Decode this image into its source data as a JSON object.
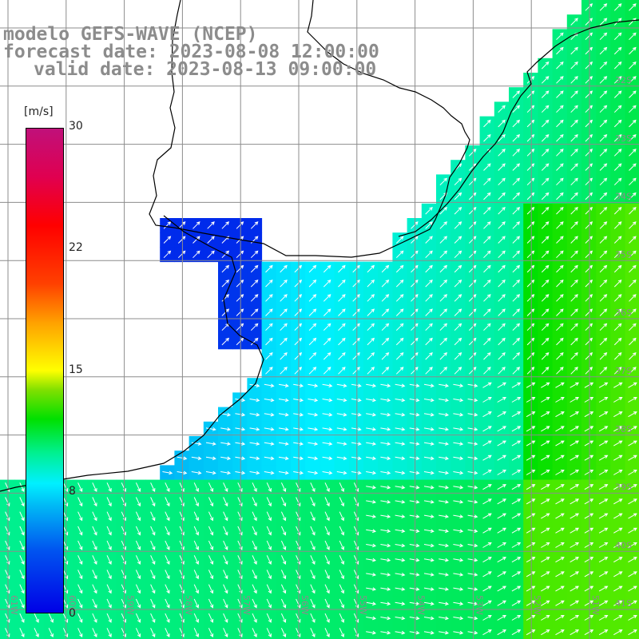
{
  "title": {
    "line1": "modelo GEFS-WAVE (NCEP)",
    "line2": "forecast date: 2023-08-08 12:00:00",
    "line3": "valid date: 2023-08-13 09:00:00"
  },
  "colorbar": {
    "unit": "[m/s]",
    "ticks": [
      "30",
      "22",
      "15",
      "8",
      "0"
    ],
    "tick_values": [
      30,
      22,
      15,
      8,
      0
    ],
    "range": [
      0,
      30
    ]
  },
  "map": {
    "lat_labels": [
      "32S",
      "33S",
      "34S",
      "35S",
      "36S",
      "37S",
      "38S",
      "39S",
      "40S",
      "41S"
    ],
    "lon_labels": [
      "61W",
      "60W",
      "59W",
      "58W",
      "57W",
      "56W",
      "55W",
      "54W",
      "53W",
      "52W",
      "51W"
    ],
    "colors": {
      "land": "#ffffff",
      "coast": "#000000",
      "grid": "#8c8c8c",
      "arrow": "#ffffff"
    }
  }
}
